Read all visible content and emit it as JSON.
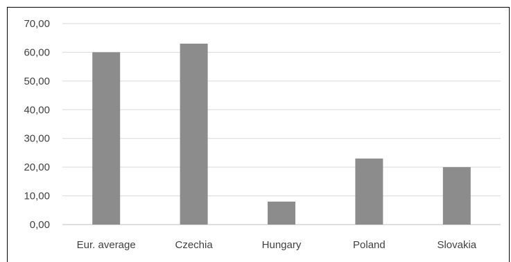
{
  "chart_data": {
    "type": "bar",
    "title": "",
    "xlabel": "",
    "ylabel": "",
    "categories": [
      "Eur. average",
      "Czechia",
      "Hungary",
      "Poland",
      "Slovakia"
    ],
    "values": [
      60,
      63,
      8,
      23,
      20
    ],
    "ylim": [
      0,
      70
    ],
    "yticks": [
      "0,00",
      "10,00",
      "20,00",
      "30,00",
      "40,00",
      "50,00",
      "60,00",
      "70,00"
    ],
    "grid": true,
    "legend": "none",
    "bar_color": "#8c8c8c"
  }
}
